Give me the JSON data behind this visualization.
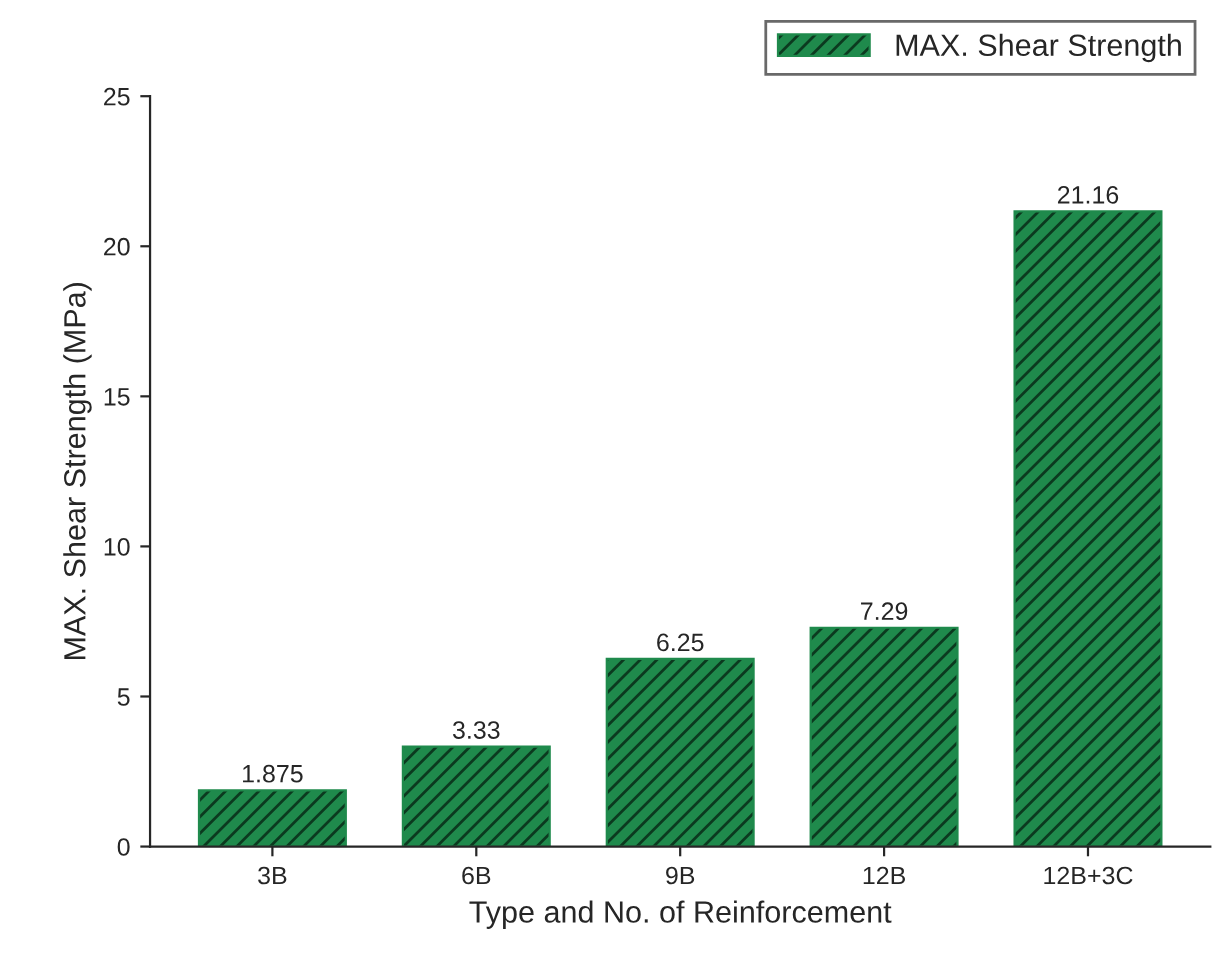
{
  "chart_data": {
    "type": "bar",
    "xlabel": "Type and No. of Reinforcement",
    "ylabel": "MAX. Shear Strength (MPa)",
    "categories": [
      "3B",
      "6B",
      "9B",
      "12B",
      "12B+3C"
    ],
    "series": [
      {
        "name": "MAX. Shear Strength",
        "color": "#1f8a4c",
        "values": [
          1.875,
          3.33,
          6.25,
          7.29,
          21.16
        ]
      }
    ],
    "ylim": [
      0,
      25
    ],
    "yticks": [
      0,
      5,
      10,
      15,
      20,
      25
    ],
    "data_labels": true,
    "legend": "top right",
    "grid": false
  }
}
